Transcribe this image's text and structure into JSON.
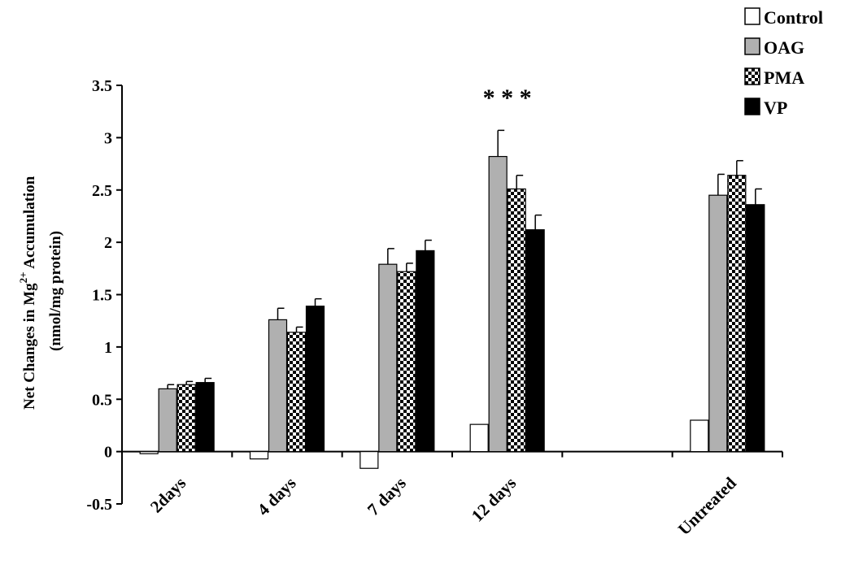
{
  "chart_data": {
    "type": "bar",
    "categories": [
      "2days",
      "4 days",
      "7 days",
      "12 days",
      "",
      "Untreated"
    ],
    "series": [
      {
        "name": "Control",
        "values": [
          -0.02,
          -0.07,
          -0.16,
          0.26,
          null,
          0.3
        ],
        "errors": [
          0,
          0,
          0,
          0,
          null,
          0
        ],
        "color": "#ffffff",
        "pattern": "none"
      },
      {
        "name": "OAG",
        "values": [
          0.6,
          1.26,
          1.79,
          2.82,
          null,
          2.45
        ],
        "errors": [
          0.04,
          0.11,
          0.15,
          0.25,
          null,
          0.2
        ],
        "color": "#b0b0b0",
        "pattern": "none"
      },
      {
        "name": "PMA",
        "values": [
          0.64,
          1.14,
          1.72,
          2.51,
          null,
          2.64
        ],
        "errors": [
          0.03,
          0.05,
          0.08,
          0.13,
          null,
          0.14
        ],
        "color": "#000000",
        "pattern": "checker"
      },
      {
        "name": "VP",
        "values": [
          0.66,
          1.39,
          1.92,
          2.12,
          null,
          2.36
        ],
        "errors": [
          0.04,
          0.07,
          0.1,
          0.14,
          null,
          0.15
        ],
        "color": "#000000",
        "pattern": "none"
      }
    ],
    "ylim": [
      -0.5,
      3.5
    ],
    "yticks": [
      "-0.5",
      "0",
      "0.5",
      "1",
      "1.5",
      "2",
      "2.5",
      "3",
      "3.5"
    ],
    "ylabel_line1": "Net Changes in Mg",
    "ylabel_sup": "2+",
    "ylabel_line1_end": " Accumulation",
    "ylabel_line2": "(nmol/mg protein)",
    "annotation": "* * *",
    "annotation_category": 3,
    "legend_position": "top-right",
    "grid": false
  }
}
